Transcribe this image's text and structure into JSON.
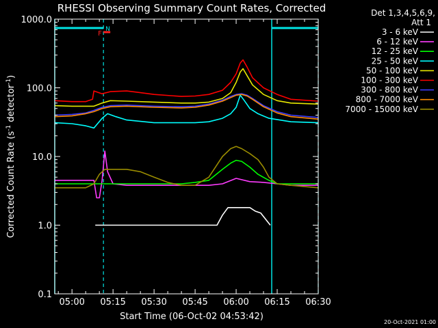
{
  "chart_data": {
    "type": "line",
    "title": "RHESSI Observing Summary Count Rates, Corrected",
    "xlabel": "Start Time (06-Oct-02 04:53:42)",
    "ylabel_main": "Corrected Count Rate (s",
    "ylabel_sup1": "-1",
    "ylabel_mid": " detector",
    "ylabel_sup2": "-1",
    "ylabel_end": ")",
    "yscale": "log",
    "ylim": [
      0.1,
      1000
    ],
    "xlim_min": [
      -6.3,
      90
    ],
    "x_ticks": [
      {
        "t": 0,
        "label": "05:00"
      },
      {
        "t": 15,
        "label": "05:15"
      },
      {
        "t": 30,
        "label": "05:30"
      },
      {
        "t": 45,
        "label": "05:45"
      },
      {
        "t": 60,
        "label": "06:00"
      },
      {
        "t": 75,
        "label": "06:15"
      },
      {
        "t": 90,
        "label": "06:30"
      }
    ],
    "y_ticks": [
      {
        "v": 0.1,
        "label": "0.1"
      },
      {
        "v": 1,
        "label": "1.0"
      },
      {
        "v": 10,
        "label": "10.0"
      },
      {
        "v": 100,
        "label": "100.0"
      },
      {
        "v": 1000,
        "label": "1000.0"
      }
    ],
    "legend": {
      "position": "right",
      "header1": "Det 1,3,4,5,6,9,",
      "header2": "Att 1"
    },
    "series": [
      {
        "name": "3 - 6 keV",
        "color": "#ffffff",
        "t": [
          8.5,
          14,
          19,
          53,
          55,
          57,
          59,
          61,
          63,
          65,
          67,
          69,
          72.5
        ],
        "v": [
          1.0,
          1.0,
          1.0,
          1.0,
          1.4,
          1.8,
          1.8,
          1.8,
          1.8,
          1.8,
          1.6,
          1.5,
          1.0
        ]
      },
      {
        "name": "6 - 12 keV",
        "color": "#ff3cff",
        "t": [
          -6.3,
          8,
          9,
          10,
          11,
          12,
          13,
          15,
          20,
          30,
          40,
          50,
          55,
          60,
          65,
          70,
          75,
          80,
          90
        ],
        "v": [
          4.5,
          4.5,
          2.5,
          2.5,
          4.5,
          12,
          6,
          4,
          3.8,
          3.8,
          3.8,
          3.8,
          4.0,
          4.8,
          4.3,
          4.2,
          4.0,
          3.8,
          3.8
        ]
      },
      {
        "name": "12 - 25 keV",
        "color": "#00ff00",
        "t": [
          -6.3,
          5,
          10,
          15,
          20,
          30,
          40,
          45,
          50,
          55,
          58,
          60,
          62,
          65,
          68,
          72,
          75,
          80,
          85,
          90
        ],
        "v": [
          4.0,
          4.0,
          4.0,
          4.0,
          4.0,
          4.0,
          4.0,
          4.2,
          4.5,
          6.5,
          8.0,
          8.8,
          8.5,
          7.0,
          5.5,
          4.5,
          4.0,
          4.0,
          4.0,
          4.0
        ]
      },
      {
        "name": "25 - 50 keV",
        "color": "#00ffff",
        "t": [
          -6.3,
          0,
          5,
          8,
          11,
          13,
          16,
          20,
          30,
          40,
          45,
          50,
          55,
          58,
          60,
          61.5,
          63,
          65,
          68,
          72,
          80,
          90
        ],
        "v": [
          31,
          30,
          28,
          26,
          36,
          42,
          38,
          34,
          31,
          31,
          31,
          32,
          36,
          42,
          52,
          78,
          65,
          50,
          42,
          36,
          32,
          31
        ]
      },
      {
        "name": "50 - 100 keV",
        "color": "#e8e800",
        "t": [
          -6.3,
          0,
          5,
          8,
          11,
          14,
          20,
          30,
          40,
          45,
          50,
          55,
          58,
          60,
          61.5,
          62.5,
          64,
          66,
          70,
          75,
          80,
          90
        ],
        "v": [
          55,
          54,
          54,
          54,
          60,
          65,
          64,
          62,
          60,
          60,
          62,
          70,
          85,
          120,
          170,
          190,
          150,
          110,
          80,
          65,
          60,
          58
        ]
      },
      {
        "name": "100 - 300 keV",
        "color": "#ff0000",
        "t": [
          -6.3,
          0,
          5,
          7.5,
          8,
          11,
          14,
          20,
          25,
          30,
          40,
          45,
          50,
          55,
          58,
          60,
          61.5,
          62.5,
          64,
          66,
          70,
          75,
          80,
          90
        ],
        "v": [
          65,
          63,
          63,
          68,
          90,
          82,
          88,
          90,
          85,
          80,
          75,
          76,
          80,
          92,
          120,
          160,
          230,
          255,
          200,
          140,
          100,
          80,
          68,
          64
        ]
      },
      {
        "name": "300 - 800 keV",
        "color": "#3c3cff",
        "t": [
          -6.3,
          0,
          5,
          8,
          11,
          14,
          20,
          30,
          40,
          45,
          50,
          55,
          58,
          60,
          62,
          64,
          66,
          70,
          75,
          80,
          90
        ],
        "v": [
          40,
          41,
          43,
          47,
          52,
          55,
          56,
          54,
          53,
          54,
          58,
          66,
          75,
          80,
          82,
          78,
          70,
          55,
          45,
          40,
          37
        ]
      },
      {
        "name": "800 - 7000 keV",
        "color": "#ff8c00",
        "t": [
          -6.3,
          0,
          5,
          8,
          11,
          14,
          20,
          30,
          40,
          45,
          50,
          55,
          58,
          60,
          62,
          64,
          66,
          70,
          75,
          80,
          90
        ],
        "v": [
          38,
          39,
          42,
          45,
          50,
          53,
          54,
          52,
          51,
          52,
          56,
          64,
          72,
          78,
          80,
          76,
          68,
          53,
          43,
          38,
          35
        ]
      },
      {
        "name": "7000 - 15000 keV",
        "color": "#9a8c00",
        "t": [
          -6.3,
          0,
          5,
          8,
          10,
          12,
          15,
          20,
          25,
          30,
          35,
          40,
          45,
          50,
          55,
          58,
          60,
          62,
          65,
          68,
          70,
          72,
          75,
          80,
          90
        ],
        "v": [
          3.5,
          3.5,
          3.5,
          4.0,
          5.5,
          6.5,
          6.5,
          6.5,
          6.0,
          5.0,
          4.2,
          3.8,
          3.8,
          5.0,
          10,
          13,
          14,
          13,
          11,
          9,
          7,
          5,
          4,
          3.8,
          3.5
        ]
      }
    ],
    "attenuator_bars": [
      {
        "t_start": -6.3,
        "t_end": 11.5
      },
      {
        "t_start": 73,
        "t_end": 90
      }
    ],
    "vlines_solid": [
      -6.3,
      73
    ],
    "vlines_dashed": [
      11.5,
      90
    ],
    "flag_f": {
      "label": "F",
      "t": 11
    },
    "flag_n": {
      "label": "N",
      "t": 12.5
    },
    "flag_bar": {
      "t_start": 11.5,
      "t_end": 14
    },
    "timestamp": "20-Oct-2021 01:00"
  }
}
